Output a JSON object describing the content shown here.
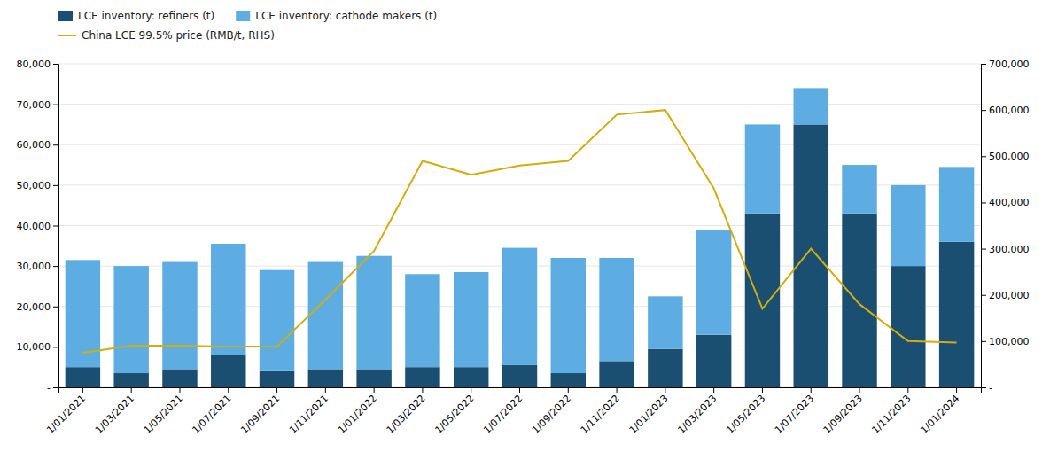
{
  "chart_data": {
    "type": "bar",
    "stacked": true,
    "grid": true,
    "legend": "top-left",
    "categories": [
      "1/01/2021",
      "1/03/2021",
      "1/05/2021",
      "1/07/2021",
      "1/09/2021",
      "1/11/2021",
      "1/01/2022",
      "1/03/2022",
      "1/05/2022",
      "1/07/2022",
      "1/09/2022",
      "1/11/2022",
      "1/01/2023",
      "1/03/2023",
      "1/05/2023",
      "1/07/2023",
      "1/09/2023",
      "1/11/2023",
      "1/01/2024"
    ],
    "series": [
      {
        "name": "LCE inventory: refiners (t)",
        "type": "bar",
        "color": "#1b4f72",
        "values": [
          5000,
          3500,
          4500,
          8000,
          4000,
          4500,
          4500,
          5000,
          5000,
          5500,
          3500,
          6500,
          9500,
          13000,
          43000,
          65000,
          43000,
          30000,
          36000
        ]
      },
      {
        "name": "LCE inventory: cathode makers (t)",
        "type": "bar",
        "color": "#5dade2",
        "values": [
          26500,
          26500,
          26500,
          27500,
          25000,
          26500,
          28000,
          23000,
          23500,
          29000,
          28500,
          25500,
          13000,
          26000,
          22000,
          9000,
          12000,
          20000,
          18500
        ]
      },
      {
        "name": "China LCE 99.5% price (RMB/t, RHS)",
        "type": "line",
        "axis": "y2",
        "color": "#d4ac0d",
        "values": [
          75000,
          90000,
          90000,
          88000,
          88000,
          190000,
          295000,
          490000,
          460000,
          480000,
          490000,
          590000,
          600000,
          430000,
          170000,
          300000,
          180000,
          100000,
          97000
        ]
      }
    ],
    "ylim": [
      0,
      80000
    ],
    "yticks": [
      {
        "value": 0,
        "label": "-"
      },
      {
        "value": 10000,
        "label": "10,000"
      },
      {
        "value": 20000,
        "label": "20,000"
      },
      {
        "value": 30000,
        "label": "30,000"
      },
      {
        "value": 40000,
        "label": "40,000"
      },
      {
        "value": 50000,
        "label": "50,000"
      },
      {
        "value": 60000,
        "label": "60,000"
      },
      {
        "value": 70000,
        "label": "70,000"
      },
      {
        "value": 80000,
        "label": "80,000"
      }
    ],
    "y2lim": [
      0,
      700000
    ],
    "y2ticks": [
      {
        "value": 0,
        "label": "-"
      },
      {
        "value": 100000,
        "label": "100,000"
      },
      {
        "value": 200000,
        "label": "200,000"
      },
      {
        "value": 300000,
        "label": "300,000"
      },
      {
        "value": 400000,
        "label": "400,000"
      },
      {
        "value": 500000,
        "label": "500,000"
      },
      {
        "value": 600000,
        "label": "600,000"
      },
      {
        "value": 700000,
        "label": "700,000"
      }
    ]
  }
}
